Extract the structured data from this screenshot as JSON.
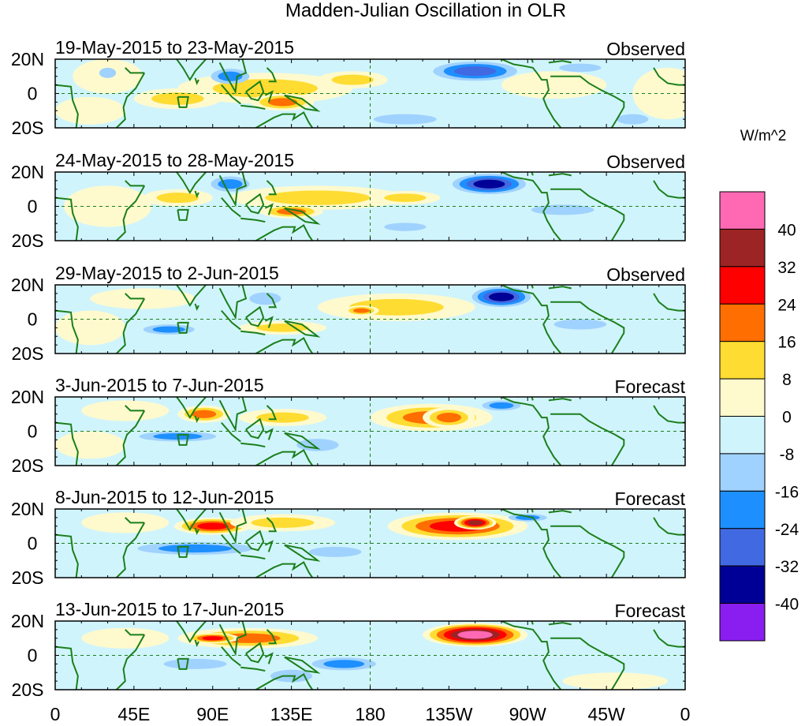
{
  "chart_data": {
    "type": "heatmap",
    "title": "Madden-Julian Oscillation in OLR",
    "units_label": "W/m^2",
    "x_ticks": [
      "0",
      "45E",
      "90E",
      "135E",
      "180",
      "135W",
      "90W",
      "45W",
      "0"
    ],
    "y_ticks": [
      "20N",
      "0",
      "20S"
    ],
    "xlim_lon_east": [
      0,
      360
    ],
    "ylim_lat": [
      -20,
      20
    ],
    "colorbar": {
      "levels": [
        "40",
        "32",
        "24",
        "16",
        "8",
        "0",
        "-8",
        "-16",
        "-24",
        "-32",
        "-40"
      ],
      "colors": [
        "#ff69b4",
        "#9c2424",
        "#ff0000",
        "#ff6e00",
        "#ffdc32",
        "#fffacd",
        "#d0f4fc",
        "#a0d2ff",
        "#1e8ffe",
        "#4169e1",
        "#000096",
        "#8a1ef0"
      ]
    },
    "panels": [
      {
        "dates": "19-May-2015 to 23-May-2015",
        "kind": "Observed",
        "features": [
          {
            "lon": 120,
            "lat": 3,
            "rx": 50,
            "ry": 9,
            "v": 12
          },
          {
            "lon": 130,
            "lat": -5,
            "rx": 18,
            "ry": 5,
            "v": 20
          },
          {
            "lon": 70,
            "lat": -3,
            "rx": 25,
            "ry": 6,
            "v": 10
          },
          {
            "lon": 20,
            "lat": -10,
            "rx": 20,
            "ry": 8,
            "v": 4
          },
          {
            "lon": 30,
            "lat": 10,
            "rx": 20,
            "ry": 10,
            "v": 4
          },
          {
            "lon": 285,
            "lat": 5,
            "rx": 30,
            "ry": 8,
            "v": 4
          },
          {
            "lon": 170,
            "lat": 8,
            "rx": 20,
            "ry": 5,
            "v": 10
          },
          {
            "lon": 350,
            "lat": 0,
            "rx": 20,
            "ry": 15,
            "v": 4
          },
          {
            "lon": 100,
            "lat": 10,
            "rx": 15,
            "ry": 6,
            "v": -18
          },
          {
            "lon": 240,
            "lat": 13,
            "rx": 30,
            "ry": 7,
            "v": -28
          },
          {
            "lon": 300,
            "lat": 15,
            "rx": 20,
            "ry": 4,
            "v": -12
          },
          {
            "lon": 30,
            "lat": 12,
            "rx": 8,
            "ry": 5,
            "v": -12
          },
          {
            "lon": 200,
            "lat": -15,
            "rx": 30,
            "ry": 5,
            "v": -10
          },
          {
            "lon": 330,
            "lat": -15,
            "rx": 15,
            "ry": 5,
            "v": -10
          }
        ]
      },
      {
        "dates": "24-May-2015 to 28-May-2015",
        "kind": "Observed",
        "features": [
          {
            "lon": 150,
            "lat": 5,
            "rx": 50,
            "ry": 7,
            "v": 12
          },
          {
            "lon": 135,
            "lat": -3,
            "rx": 18,
            "ry": 4,
            "v": 20
          },
          {
            "lon": 70,
            "lat": 5,
            "rx": 20,
            "ry": 5,
            "v": 10
          },
          {
            "lon": 200,
            "lat": 5,
            "rx": 20,
            "ry": 4,
            "v": 12
          },
          {
            "lon": 30,
            "lat": 0,
            "rx": 25,
            "ry": 12,
            "v": 4
          },
          {
            "lon": 248,
            "lat": 13,
            "rx": 25,
            "ry": 7,
            "v": -36
          },
          {
            "lon": 100,
            "lat": 13,
            "rx": 15,
            "ry": 6,
            "v": -16
          },
          {
            "lon": 290,
            "lat": -2,
            "rx": 30,
            "ry": 5,
            "v": -10
          },
          {
            "lon": 200,
            "lat": -12,
            "rx": 20,
            "ry": 4,
            "v": -10
          }
        ]
      },
      {
        "dates": "29-May-2015 to 2-Jun-2015",
        "kind": "Observed",
        "features": [
          {
            "lon": 195,
            "lat": 7,
            "rx": 45,
            "ry": 8,
            "v": 14
          },
          {
            "lon": 175,
            "lat": 5,
            "rx": 10,
            "ry": 3,
            "v": 18
          },
          {
            "lon": 130,
            "lat": -5,
            "rx": 25,
            "ry": 4,
            "v": 12
          },
          {
            "lon": 50,
            "lat": 12,
            "rx": 30,
            "ry": 6,
            "v": 6
          },
          {
            "lon": 20,
            "lat": -5,
            "rx": 20,
            "ry": 10,
            "v": 4
          },
          {
            "lon": 255,
            "lat": 13,
            "rx": 20,
            "ry": 7,
            "v": -38
          },
          {
            "lon": 65,
            "lat": -6,
            "rx": 20,
            "ry": 4,
            "v": -20
          },
          {
            "lon": 120,
            "lat": 12,
            "rx": 15,
            "ry": 6,
            "v": -10
          },
          {
            "lon": 300,
            "lat": -3,
            "rx": 25,
            "ry": 5,
            "v": -10
          }
        ]
      },
      {
        "dates": "3-Jun-2015 to 7-Jun-2015",
        "kind": "Forecast",
        "features": [
          {
            "lon": 215,
            "lat": 8,
            "rx": 35,
            "ry": 8,
            "v": 20
          },
          {
            "lon": 225,
            "lat": 8,
            "rx": 15,
            "ry": 6,
            "v": 22
          },
          {
            "lon": 85,
            "lat": 10,
            "rx": 15,
            "ry": 5,
            "v": 18
          },
          {
            "lon": 130,
            "lat": 8,
            "rx": 25,
            "ry": 5,
            "v": 10
          },
          {
            "lon": 40,
            "lat": 12,
            "rx": 25,
            "ry": 6,
            "v": 6
          },
          {
            "lon": 20,
            "lat": -8,
            "rx": 20,
            "ry": 8,
            "v": 4
          },
          {
            "lon": 70,
            "lat": -3,
            "rx": 30,
            "ry": 4,
            "v": -20
          },
          {
            "lon": 255,
            "lat": 15,
            "rx": 15,
            "ry": 4,
            "v": -22
          },
          {
            "lon": 150,
            "lat": -8,
            "rx": 20,
            "ry": 6,
            "v": -10
          }
        ]
      },
      {
        "dates": "8-Jun-2015 to 12-Jun-2015",
        "kind": "Forecast",
        "features": [
          {
            "lon": 230,
            "lat": 10,
            "rx": 40,
            "ry": 8,
            "v": 30
          },
          {
            "lon": 240,
            "lat": 12,
            "rx": 12,
            "ry": 4,
            "v": 34
          },
          {
            "lon": 90,
            "lat": 10,
            "rx": 22,
            "ry": 5,
            "v": 24
          },
          {
            "lon": 130,
            "lat": 12,
            "rx": 30,
            "ry": 5,
            "v": 10
          },
          {
            "lon": 40,
            "lat": 12,
            "rx": 25,
            "ry": 6,
            "v": 6
          },
          {
            "lon": 80,
            "lat": -3,
            "rx": 45,
            "ry": 5,
            "v": -22
          },
          {
            "lon": 160,
            "lat": -5,
            "rx": 25,
            "ry": 5,
            "v": -12
          },
          {
            "lon": 270,
            "lat": 15,
            "rx": 15,
            "ry": 3,
            "v": -18
          }
        ]
      },
      {
        "dates": "13-Jun-2015 to 17-Jun-2015",
        "kind": "Forecast",
        "features": [
          {
            "lon": 240,
            "lat": 12,
            "rx": 30,
            "ry": 7,
            "v": 42
          },
          {
            "lon": 110,
            "lat": 10,
            "rx": 40,
            "ry": 6,
            "v": 18
          },
          {
            "lon": 90,
            "lat": 10,
            "rx": 15,
            "ry": 3,
            "v": 24
          },
          {
            "lon": 40,
            "lat": 10,
            "rx": 25,
            "ry": 6,
            "v": 6
          },
          {
            "lon": 320,
            "lat": -15,
            "rx": 30,
            "ry": 5,
            "v": 6
          },
          {
            "lon": 165,
            "lat": -5,
            "rx": 25,
            "ry": 5,
            "v": -20
          },
          {
            "lon": 80,
            "lat": -5,
            "rx": 30,
            "ry": 5,
            "v": -12
          },
          {
            "lon": 135,
            "lat": -12,
            "rx": 20,
            "ry": 6,
            "v": -10
          }
        ]
      }
    ]
  }
}
